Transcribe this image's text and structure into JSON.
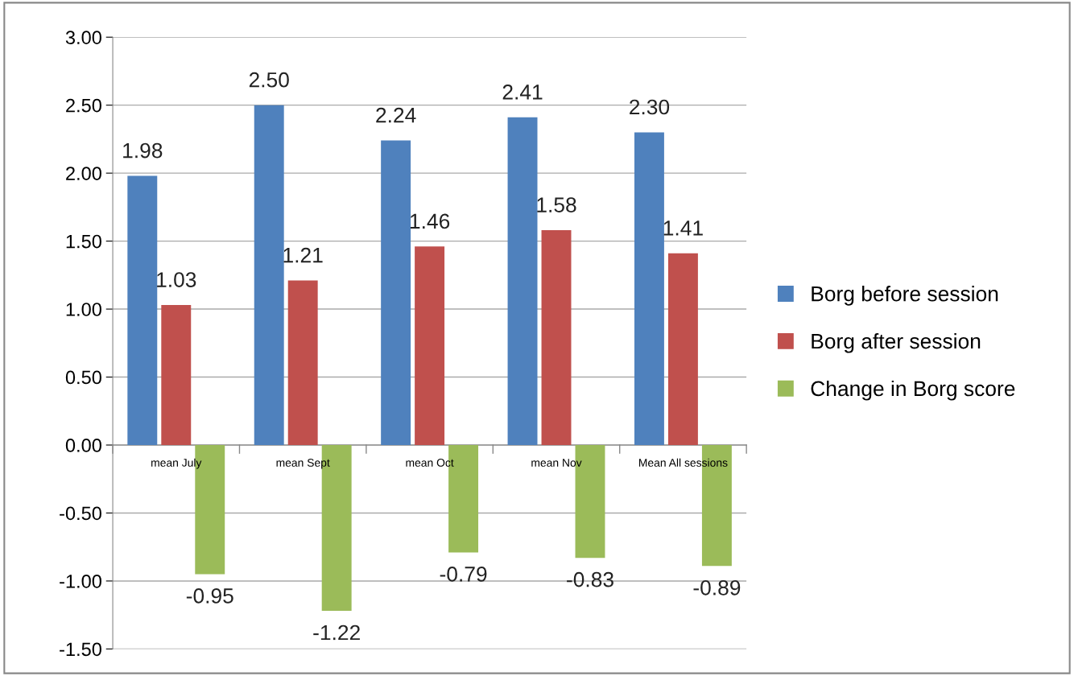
{
  "chart_data": {
    "type": "bar",
    "categories": [
      "mean July",
      "mean Sept",
      "mean Oct",
      "mean Nov",
      "Mean All sessions"
    ],
    "series": [
      {
        "name": "Borg before session",
        "color": "#4f81bd",
        "values": [
          1.98,
          2.5,
          2.24,
          2.41,
          2.3
        ],
        "value_labels": [
          "1.98",
          "2.50",
          "2.24",
          "2.41",
          "2.30"
        ]
      },
      {
        "name": "Borg after session",
        "color": "#c0504d",
        "values": [
          1.03,
          1.21,
          1.46,
          1.58,
          1.41
        ],
        "value_labels": [
          "1.03",
          "1.21",
          "1.46",
          "1.58",
          "1.41"
        ]
      },
      {
        "name": "Change in Borg score",
        "color": "#9bbb59",
        "values": [
          -0.95,
          -1.22,
          -0.79,
          -0.83,
          -0.89
        ],
        "value_labels": [
          "-0.95",
          "-1.22",
          "-0.79",
          "-0.83",
          "-0.89"
        ]
      }
    ],
    "ylim": [
      -1.5,
      3.0
    ],
    "yticks": [
      {
        "value": -1.5,
        "label": "-1.50"
      },
      {
        "value": -1.0,
        "label": "-1.00"
      },
      {
        "value": -0.5,
        "label": "-0.50"
      },
      {
        "value": 0,
        "label": "0.00"
      },
      {
        "value": 0.5,
        "label": "0.50"
      },
      {
        "value": 1.0,
        "label": "1.00"
      },
      {
        "value": 1.5,
        "label": "1.50"
      },
      {
        "value": 2.0,
        "label": "2.00"
      },
      {
        "value": 2.5,
        "label": "2.50"
      },
      {
        "value": 3.0,
        "label": "3.00"
      }
    ],
    "grid": "y",
    "legend": "right"
  }
}
